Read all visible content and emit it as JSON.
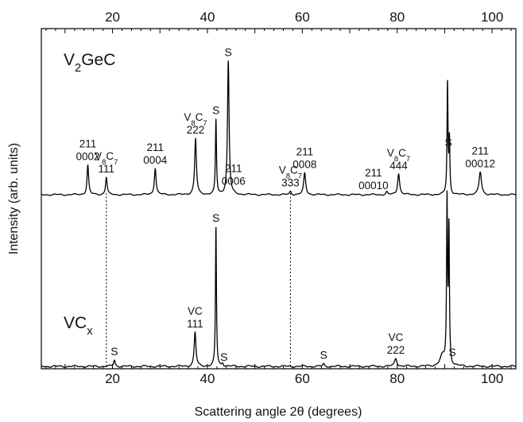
{
  "chart_data": {
    "type": "line",
    "title": "",
    "xlabel": "Scattering angle 2θ (degrees)",
    "ylabel": "Intensity (arb. units)",
    "xlim": [
      5,
      105
    ],
    "xticks": [
      20,
      40,
      60,
      80,
      100
    ],
    "grid": false,
    "legend": "none",
    "guide_lines_x": [
      18.7,
      57.5
    ],
    "series": [
      {
        "name": "V2GeC",
        "label_parts": [
          {
            "t": "V",
            "sub": false
          },
          {
            "t": "2",
            "sub": true
          },
          {
            "t": "GeC",
            "sub": false
          }
        ],
        "baseline": 0.05,
        "peaks": [
          {
            "x": 14.8,
            "h": 0.22,
            "w": 0.2
          },
          {
            "x": 18.7,
            "h": 0.13,
            "w": 0.2
          },
          {
            "x": 29.0,
            "h": 0.2,
            "w": 0.22
          },
          {
            "x": 37.5,
            "h": 0.42,
            "w": 0.22
          },
          {
            "x": 41.8,
            "h": 0.56,
            "w": 0.13
          },
          {
            "x": 44.4,
            "h": 1.0,
            "w": 0.2
          },
          {
            "x": 57.5,
            "h": 0.025,
            "w": 0.2
          },
          {
            "x": 60.5,
            "h": 0.16,
            "w": 0.25
          },
          {
            "x": 77.8,
            "h": 0.02,
            "w": 0.2
          },
          {
            "x": 80.3,
            "h": 0.16,
            "w": 0.25
          },
          {
            "x": 90.6,
            "h": 0.83,
            "w": 0.12
          },
          {
            "x": 91.0,
            "h": 0.4,
            "w": 0.12
          },
          {
            "x": 97.5,
            "h": 0.17,
            "w": 0.3
          }
        ],
        "annotations": [
          {
            "x": 14.8,
            "lines": [
              "211",
              "0002"
            ]
          },
          {
            "x": 18.7,
            "lines": [
              {
                "parts": [
                  {
                    "t": "V",
                    "sub": false
                  },
                  {
                    "t": "8",
                    "sub": true
                  },
                  {
                    "t": "C",
                    "sub": false
                  },
                  {
                    "t": "7",
                    "sub": true
                  }
                ]
              },
              "111"
            ]
          },
          {
            "x": 29.0,
            "lines": [
              "211",
              "0004"
            ]
          },
          {
            "x": 37.5,
            "lines": [
              {
                "parts": [
                  {
                    "t": "V",
                    "sub": false
                  },
                  {
                    "t": "8",
                    "sub": true
                  },
                  {
                    "t": "C",
                    "sub": false
                  },
                  {
                    "t": "7",
                    "sub": true
                  }
                ]
              },
              "222"
            ]
          },
          {
            "x": 41.8,
            "lines": [
              "S"
            ]
          },
          {
            "x": 44.4,
            "lines": [
              "S"
            ]
          },
          {
            "x": 45.5,
            "lines": [
              "211",
              "0006"
            ]
          },
          {
            "x": 57.5,
            "lines": [
              {
                "parts": [
                  {
                    "t": "V",
                    "sub": false
                  },
                  {
                    "t": "8",
                    "sub": true
                  },
                  {
                    "t": "C",
                    "sub": false
                  },
                  {
                    "t": "7",
                    "sub": true
                  }
                ]
              },
              "333"
            ]
          },
          {
            "x": 60.5,
            "lines": [
              "211",
              "0008"
            ]
          },
          {
            "x": 75.0,
            "lines": [
              "211",
              "00010"
            ]
          },
          {
            "x": 80.3,
            "lines": [
              {
                "parts": [
                  {
                    "t": "V",
                    "sub": false
                  },
                  {
                    "t": "8",
                    "sub": true
                  },
                  {
                    "t": "C",
                    "sub": false
                  },
                  {
                    "t": "7",
                    "sub": true
                  }
                ]
              },
              "444"
            ]
          },
          {
            "x": 90.8,
            "lines": [
              "S"
            ]
          },
          {
            "x": 97.5,
            "lines": [
              "211",
              "00012"
            ]
          }
        ]
      },
      {
        "name": "VCx",
        "label_parts": [
          {
            "t": "VC",
            "sub": false
          },
          {
            "t": "x",
            "sub": true
          }
        ],
        "baseline": 0.05,
        "peaks": [
          {
            "x": 20.4,
            "h": 0.04,
            "w": 0.2
          },
          {
            "x": 37.4,
            "h": 0.21,
            "w": 0.22
          },
          {
            "x": 41.8,
            "h": 0.86,
            "w": 0.12
          },
          {
            "x": 43.2,
            "h": 0.02,
            "w": 0.2
          },
          {
            "x": 64.5,
            "h": 0.015,
            "w": 0.2
          },
          {
            "x": 79.7,
            "h": 0.05,
            "w": 0.3
          },
          {
            "x": 89.5,
            "h": 0.06,
            "w": 0.6
          },
          {
            "x": 90.5,
            "h": 1.0,
            "w": 0.12
          },
          {
            "x": 90.9,
            "h": 0.82,
            "w": 0.12
          }
        ],
        "annotations": [
          {
            "x": 20.4,
            "lines": [
              "S"
            ]
          },
          {
            "x": 37.4,
            "lines": [
              "VC",
              "111"
            ]
          },
          {
            "x": 41.8,
            "lines": [
              "S"
            ]
          },
          {
            "x": 43.5,
            "lines": [
              "S"
            ]
          },
          {
            "x": 64.5,
            "lines": [
              "S"
            ]
          },
          {
            "x": 79.7,
            "lines": [
              "VC",
              "222"
            ]
          },
          {
            "x": 91.6,
            "lines": [
              "S"
            ]
          }
        ]
      }
    ]
  }
}
